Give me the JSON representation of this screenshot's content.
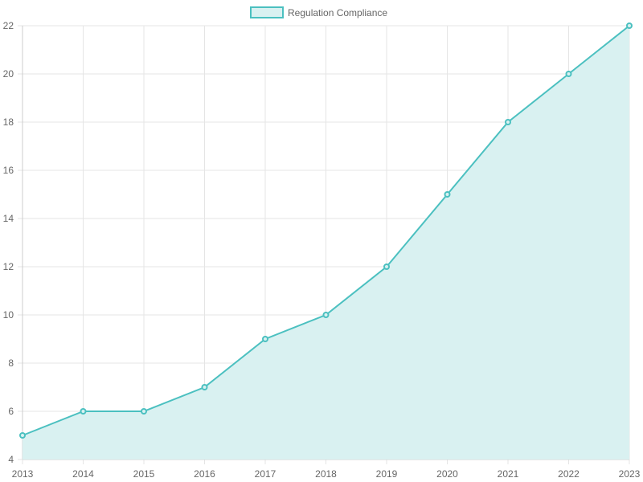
{
  "chart_data": {
    "type": "area",
    "title": "",
    "xlabel": "",
    "ylabel": "",
    "categories": [
      "2013",
      "2014",
      "2015",
      "2016",
      "2017",
      "2018",
      "2019",
      "2020",
      "2021",
      "2022",
      "2023"
    ],
    "series": [
      {
        "name": "Regulation Compliance",
        "values": [
          5,
          6,
          6,
          7,
          9,
          10,
          12,
          15,
          18,
          20,
          22
        ],
        "line_color": "#4bc0c0",
        "fill_color": "#d9f1f1"
      }
    ],
    "ylim": [
      4,
      22
    ],
    "yticks": [
      4,
      6,
      8,
      10,
      12,
      14,
      16,
      18,
      20,
      22
    ],
    "grid": true,
    "legend_position": "top"
  },
  "legend": {
    "label": "Regulation Compliance"
  },
  "colors": {
    "line": "#4bc0c0",
    "fill": "#d9f1f1",
    "grid": "#e5e5e5",
    "tick_text": "#666666"
  }
}
